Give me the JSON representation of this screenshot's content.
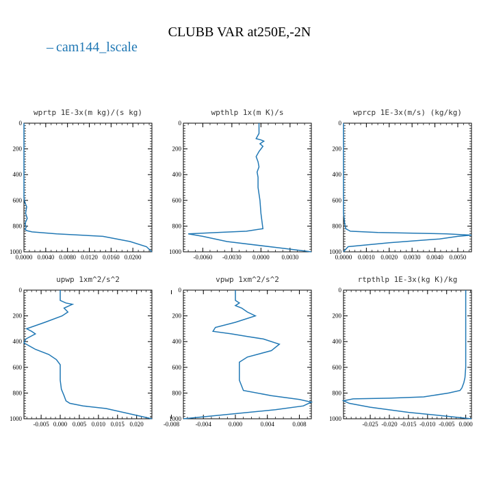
{
  "title": "CLUBB VAR at250E,-2N",
  "legend": {
    "label": "cam144_lscale",
    "color": "#1f77b4"
  },
  "chart_data": [
    {
      "type": "line",
      "title": "wprtp  1E-3x(m kg)/(s kg)",
      "xlim": [
        0,
        0.0235
      ],
      "ylim": [
        1000,
        0
      ],
      "xticks": [
        0,
        0.004,
        0.008,
        0.012,
        0.016,
        0.02
      ],
      "xticklabels": [
        "0.0000",
        "0.0040",
        "0.0080",
        "0.0120",
        "0.0160",
        "0.0200"
      ],
      "yticks": [
        0,
        200,
        400,
        600,
        800,
        1000
      ],
      "yticklabels": [
        "0",
        "200",
        "400",
        "600",
        "800",
        "1000"
      ],
      "series": [
        {
          "color": "#1f77b4",
          "x": [
            0,
            0,
            0.0002,
            0.0005,
            0.0003,
            0.0006,
            0.0002,
            0.0004,
            0.0002,
            0.0005,
            0.0015,
            0.006,
            0.0145,
            0.0195,
            0.0225,
            0.0235
          ],
          "y": [
            0,
            580,
            620,
            650,
            700,
            740,
            780,
            810,
            825,
            835,
            845,
            860,
            880,
            920,
            960,
            1000
          ]
        }
      ]
    },
    {
      "type": "line",
      "title": "wpthlp  1x(m K)/s",
      "xlim": [
        -0.008,
        0.0052
      ],
      "ylim": [
        1000,
        0
      ],
      "xticks": [
        -0.006,
        -0.003,
        0,
        0.003
      ],
      "xticklabels": [
        "-0.0060",
        "-0.0030",
        "0.0000",
        "0.0030"
      ],
      "yticks": [
        0,
        200,
        400,
        600,
        800,
        1000
      ],
      "yticklabels": [
        "0",
        "200",
        "400",
        "600",
        "800",
        "1000"
      ],
      "series": [
        {
          "color": "#1f77b4",
          "x": [
            -0.0002,
            -0.0002,
            -0.0005,
            0,
            0.0003,
            -0.0001,
            0.0002,
            -0.0002,
            -0.0005,
            -0.0003,
            -0.0002,
            -0.0004,
            -0.0003,
            -0.0003,
            -0.0001,
            0,
            0.0002,
            -0.0015,
            -0.0045,
            -0.0075,
            -0.006,
            -0.0035,
            0.002,
            0.0052
          ],
          "y": [
            0,
            80,
            120,
            130,
            140,
            160,
            180,
            220,
            260,
            300,
            340,
            380,
            420,
            500,
            600,
            700,
            820,
            840,
            850,
            860,
            880,
            920,
            970,
            1000
          ]
        }
      ]
    },
    {
      "type": "line",
      "title": "wprcp  1E-3x(m/s) (kg/kg)",
      "xlim": [
        0,
        0.0056
      ],
      "ylim": [
        1000,
        0
      ],
      "xticks": [
        0,
        0.001,
        0.002,
        0.003,
        0.004,
        0.005
      ],
      "xticklabels": [
        "0.0000",
        "0.0010",
        "0.0020",
        "0.0030",
        "0.0040",
        "0.0050"
      ],
      "yticks": [
        0,
        200,
        400,
        600,
        800,
        1000
      ],
      "yticklabels": [
        "0",
        "200",
        "400",
        "600",
        "800",
        "1000"
      ],
      "series": [
        {
          "color": "#1f77b4",
          "x": [
            0,
            0,
            5e-05,
            0.0001,
            0.0003,
            0.0015,
            0.0045,
            0.0056,
            0.005,
            0.0042,
            0.002,
            0.0002,
            0
          ],
          "y": [
            0,
            700,
            780,
            820,
            840,
            850,
            860,
            870,
            880,
            900,
            930,
            960,
            1000
          ]
        }
      ]
    },
    {
      "type": "line",
      "title": "upwp  1xm^2/s^2",
      "xlim": [
        -0.0095,
        0.024
      ],
      "ylim": [
        1000,
        0
      ],
      "xticks": [
        -0.005,
        0,
        0.005,
        0.01,
        0.015,
        0.02
      ],
      "xticklabels": [
        "-0.005",
        "0.000",
        "0.005",
        "0.010",
        "0.015",
        "0.020"
      ],
      "yticks": [
        0,
        200,
        400,
        600,
        800,
        1000
      ],
      "yticklabels": [
        "0",
        "200",
        "400",
        "600",
        "800",
        "1000"
      ],
      "series": [
        {
          "color": "#1f77b4",
          "x": [
            0,
            0,
            0.0015,
            0.0032,
            0.001,
            0.002,
            0.0005,
            -0.004,
            -0.0088,
            -0.0075,
            -0.0065,
            -0.009,
            -0.0095,
            -0.0065,
            -0.003,
            -0.001,
            0,
            0,
            0.0003,
            0.001,
            0.0015,
            0.0025,
            0.006,
            0.012,
            0.018,
            0.024
          ],
          "y": [
            0,
            80,
            100,
            110,
            140,
            170,
            200,
            250,
            300,
            320,
            340,
            380,
            410,
            460,
            500,
            540,
            580,
            700,
            770,
            820,
            860,
            880,
            900,
            920,
            960,
            1000
          ]
        }
      ]
    },
    {
      "type": "line",
      "title": "vpwp  1xm^2/s^2",
      "xlim": [
        -0.0065,
        0.0095
      ],
      "ylim": [
        1000,
        0
      ],
      "xticks": [
        -0.008,
        -0.004,
        0,
        0.004,
        0.008
      ],
      "xticklabels": [
        "-0.008",
        "-0.004",
        "0.000",
        "0.004",
        "0.008"
      ],
      "yticks": [
        0,
        200,
        400,
        600,
        800,
        1000
      ],
      "yticklabels": [
        "0",
        "200",
        "400",
        "600",
        "800",
        "1000"
      ],
      "series": [
        {
          "color": "#1f77b4",
          "x": [
            0,
            0,
            0.0005,
            0,
            0.0008,
            0.0015,
            0.0025,
            0,
            -0.0025,
            -0.0028,
            -0.0005,
            0.0015,
            0.0035,
            0.0055,
            0.0045,
            0.0015,
            0.0005,
            0.0005,
            0.0005,
            0.001,
            0.0045,
            0.008,
            0.0095,
            0.0085,
            0.005,
            0,
            -0.0065
          ],
          "y": [
            0,
            80,
            100,
            120,
            140,
            170,
            200,
            250,
            290,
            320,
            340,
            360,
            380,
            420,
            470,
            520,
            560,
            640,
            700,
            780,
            820,
            850,
            870,
            900,
            930,
            960,
            1000
          ]
        }
      ]
    },
    {
      "type": "line",
      "title": "rtpthlp  1E-3x(kg K)/kg",
      "xlim": [
        -0.032,
        0.0015
      ],
      "ylim": [
        1000,
        0
      ],
      "xticks": [
        -0.025,
        -0.02,
        -0.015,
        -0.01,
        -0.005,
        0
      ],
      "xticklabels": [
        "-0.025",
        "-0.020",
        "-0.015",
        "-0.010",
        "-0.005",
        "0.000"
      ],
      "yticks": [
        0,
        200,
        400,
        600,
        800,
        1000
      ],
      "yticklabels": [
        "0",
        "200",
        "400",
        "600",
        "800",
        "1000"
      ],
      "series": [
        {
          "color": "#1f77b4",
          "x": [
            0,
            0,
            -0.0002,
            -0.0005,
            -0.001,
            -0.0015,
            -0.0045,
            -0.011,
            -0.02,
            -0.0295,
            -0.032,
            -0.0305,
            -0.025,
            -0.015,
            -0.005,
            0.0015
          ],
          "y": [
            0,
            600,
            680,
            720,
            760,
            780,
            800,
            830,
            840,
            845,
            860,
            880,
            910,
            950,
            980,
            1000
          ]
        }
      ]
    }
  ]
}
